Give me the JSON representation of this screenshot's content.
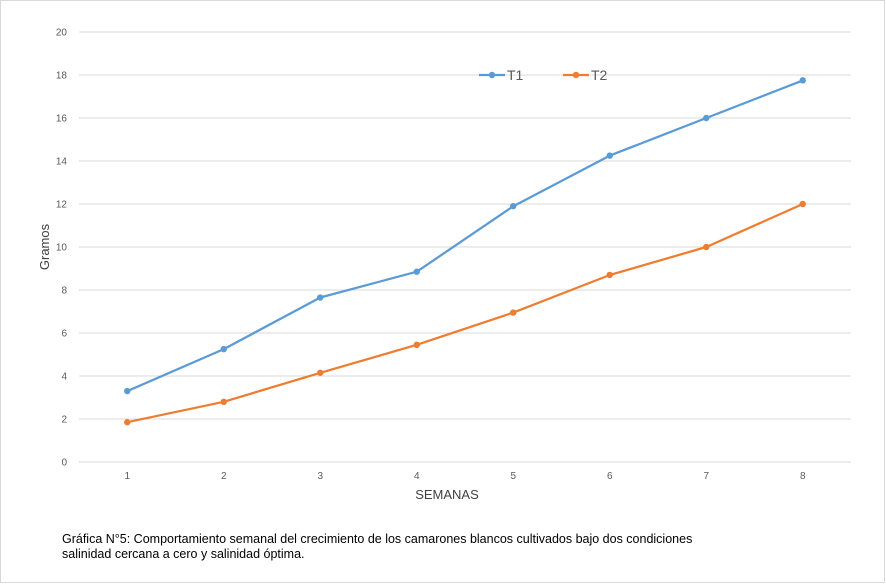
{
  "chart_data": {
    "type": "line",
    "title": "",
    "xlabel": "SEMANAS",
    "ylabel": "Gramos",
    "categories": [
      "1",
      "2",
      "3",
      "4",
      "5",
      "6",
      "7",
      "8"
    ],
    "ylim": [
      0,
      20
    ],
    "yticks": [
      "0",
      "2",
      "4",
      "6",
      "8",
      "10",
      "12",
      "14",
      "16",
      "18",
      "20"
    ],
    "grid": "horizontal",
    "legend_position": "top-center",
    "series": [
      {
        "name": "T1",
        "color": "#5b9bd5",
        "values": [
          3.3,
          5.25,
          7.65,
          8.85,
          11.9,
          14.25,
          16.0,
          17.75
        ]
      },
      {
        "name": "T2",
        "color": "#ed7d31",
        "values": [
          1.85,
          2.8,
          4.15,
          5.45,
          6.95,
          8.7,
          10.0,
          12.0
        ]
      }
    ]
  },
  "caption": {
    "line1": "Gráfica N°5: Comportamiento semanal del crecimiento de los camarones blancos cultivados bajo dos condiciones",
    "line2": "salinidad cercana a cero y salinidad óptima."
  }
}
